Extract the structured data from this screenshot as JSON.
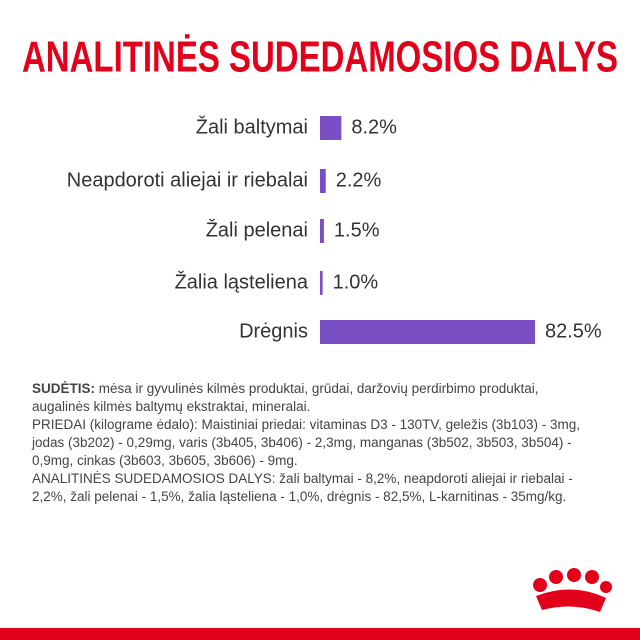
{
  "chart_data": {
    "type": "bar",
    "orientation": "horizontal",
    "title": "ANALITINĖS SUDEDAMOSIOS DALYS",
    "categories": [
      "Žali baltymai",
      "Neapdoroti aliejai ir riebalai",
      "Žali pelenai",
      "Žalia ląsteliena",
      "Drėgnis"
    ],
    "values": [
      8.2,
      2.2,
      1.5,
      1.0,
      82.5
    ],
    "value_labels": [
      "8.2%",
      "2.2%",
      "1.5%",
      "1.0%",
      "82.5%"
    ],
    "color": "#7b4fc4"
  },
  "composition": {
    "label": "SUDĖTIS:",
    "text": "mėsa ir gyvulinės kilmės produktai, grūdai, daržovių perdirbimo produktai, augalinės kilmės baltymų ekstraktai, mineralai.",
    "additives": "PRIEDAI (kilograme ėdalo): Maistiniai priedai: vitaminas D3 - 130TV, geležis (3b103) - 3mg, jodas (3b202) - 0,29mg, varis (3b405, 3b406) - 2,3mg, manganas (3b502, 3b503, 3b504) - 0,9mg, cinkas (3b603, 3b605, 3b606) - 9mg.",
    "analytical": "ANALITINĖS SUDEDAMOSIOS DALYS: žali baltymai - 8,2%, neapdoroti aliejai ir riebalai - 2,2%, žali pelenai - 1,5%, žalia ląsteliena - 1,0%, drėgnis - 82,5%, L-karnitinas - 35mg/kg."
  }
}
